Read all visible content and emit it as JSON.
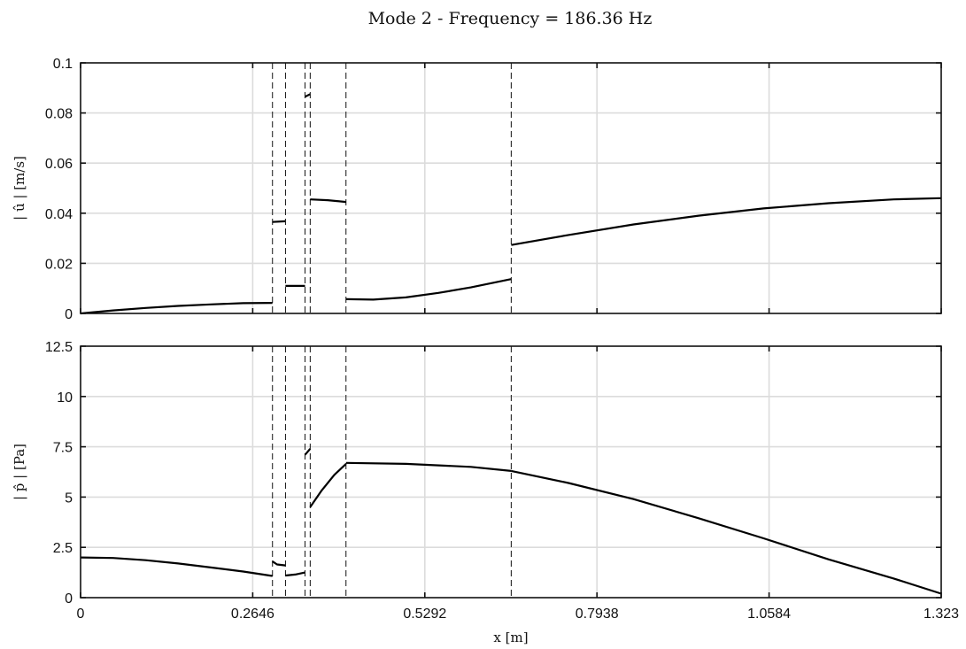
{
  "figure": {
    "title": "Mode 2 - Frequency = 186.36 Hz"
  },
  "chart_data": [
    {
      "type": "line",
      "name": "velocity-panel",
      "ylabel": "| û | [m/s]",
      "xlabel": "",
      "xlim": [
        0,
        1.323
      ],
      "ylim": [
        0,
        0.1
      ],
      "xticks": [
        0,
        0.2646,
        0.5292,
        0.7938,
        1.0584,
        1.323
      ],
      "xtick_labels": [
        "",
        "",
        "",
        "",
        "",
        ""
      ],
      "yticks": [
        0,
        0.02,
        0.04,
        0.06,
        0.08,
        0.1
      ],
      "ytick_labels": [
        "0",
        "0.02",
        "0.04",
        "0.06",
        "0.08",
        "0.1"
      ],
      "grid": true,
      "section_boundaries": [
        0.295,
        0.315,
        0.345,
        0.353,
        0.408,
        0.662
      ],
      "segments": [
        {
          "x": [
            0,
            0.05,
            0.1,
            0.15,
            0.2,
            0.25,
            0.295
          ],
          "y": [
            0,
            0.0012,
            0.0022,
            0.003,
            0.0036,
            0.0041,
            0.0042
          ]
        },
        {
          "x": [
            0.295,
            0.315
          ],
          "y": [
            0.0365,
            0.0368
          ]
        },
        {
          "x": [
            0.315,
            0.345
          ],
          "y": [
            0.011,
            0.011
          ]
        },
        {
          "x": [
            0.345,
            0.353
          ],
          "y": [
            0.0865,
            0.0875
          ]
        },
        {
          "x": [
            0.353,
            0.38,
            0.408
          ],
          "y": [
            0.0455,
            0.0452,
            0.0445
          ]
        },
        {
          "x": [
            0.408,
            0.45,
            0.5,
            0.55,
            0.6,
            0.662
          ],
          "y": [
            0.0057,
            0.0055,
            0.0064,
            0.0082,
            0.0104,
            0.0137
          ]
        },
        {
          "x": [
            0.662,
            0.75,
            0.85,
            0.95,
            1.05,
            1.15,
            1.25,
            1.323
          ],
          "y": [
            0.0273,
            0.0313,
            0.0355,
            0.039,
            0.0419,
            0.044,
            0.0455,
            0.046
          ]
        }
      ]
    },
    {
      "type": "line",
      "name": "pressure-panel",
      "ylabel": "| p̂ | [Pa]",
      "xlabel": "x [m]",
      "xlim": [
        0,
        1.323
      ],
      "ylim": [
        0,
        12.5
      ],
      "xticks": [
        0,
        0.2646,
        0.5292,
        0.7938,
        1.0584,
        1.323
      ],
      "xtick_labels": [
        "0",
        "0.2646",
        "0.5292",
        "0.7938",
        "1.0584",
        "1.323"
      ],
      "yticks": [
        0,
        2.5,
        5,
        7.5,
        10,
        12.5
      ],
      "ytick_labels": [
        "0",
        "2.5",
        "5",
        "7.5",
        "10",
        "12.5"
      ],
      "grid": true,
      "section_boundaries": [
        0.295,
        0.315,
        0.345,
        0.353,
        0.408,
        0.662
      ],
      "segments": [
        {
          "x": [
            0,
            0.05,
            0.1,
            0.15,
            0.2,
            0.25,
            0.295
          ],
          "y": [
            2.0,
            1.97,
            1.86,
            1.7,
            1.5,
            1.3,
            1.08
          ]
        },
        {
          "x": [
            0.295,
            0.302,
            0.315
          ],
          "y": [
            1.8,
            1.65,
            1.6
          ]
        },
        {
          "x": [
            0.315,
            0.33,
            0.345
          ],
          "y": [
            1.1,
            1.15,
            1.25
          ]
        },
        {
          "x": [
            0.345,
            0.353
          ],
          "y": [
            7.1,
            7.4
          ]
        },
        {
          "x": [
            0.353,
            0.37,
            0.39,
            0.408
          ],
          "y": [
            4.5,
            5.3,
            6.1,
            6.65
          ]
        },
        {
          "x": [
            0.408,
            0.5,
            0.6,
            0.662
          ],
          "y": [
            6.7,
            6.65,
            6.5,
            6.3
          ]
        },
        {
          "x": [
            0.662,
            0.75,
            0.85,
            0.95,
            1.05,
            1.15,
            1.25,
            1.323
          ],
          "y": [
            6.3,
            5.7,
            4.9,
            3.95,
            2.95,
            1.9,
            0.95,
            0.2
          ]
        }
      ]
    }
  ]
}
